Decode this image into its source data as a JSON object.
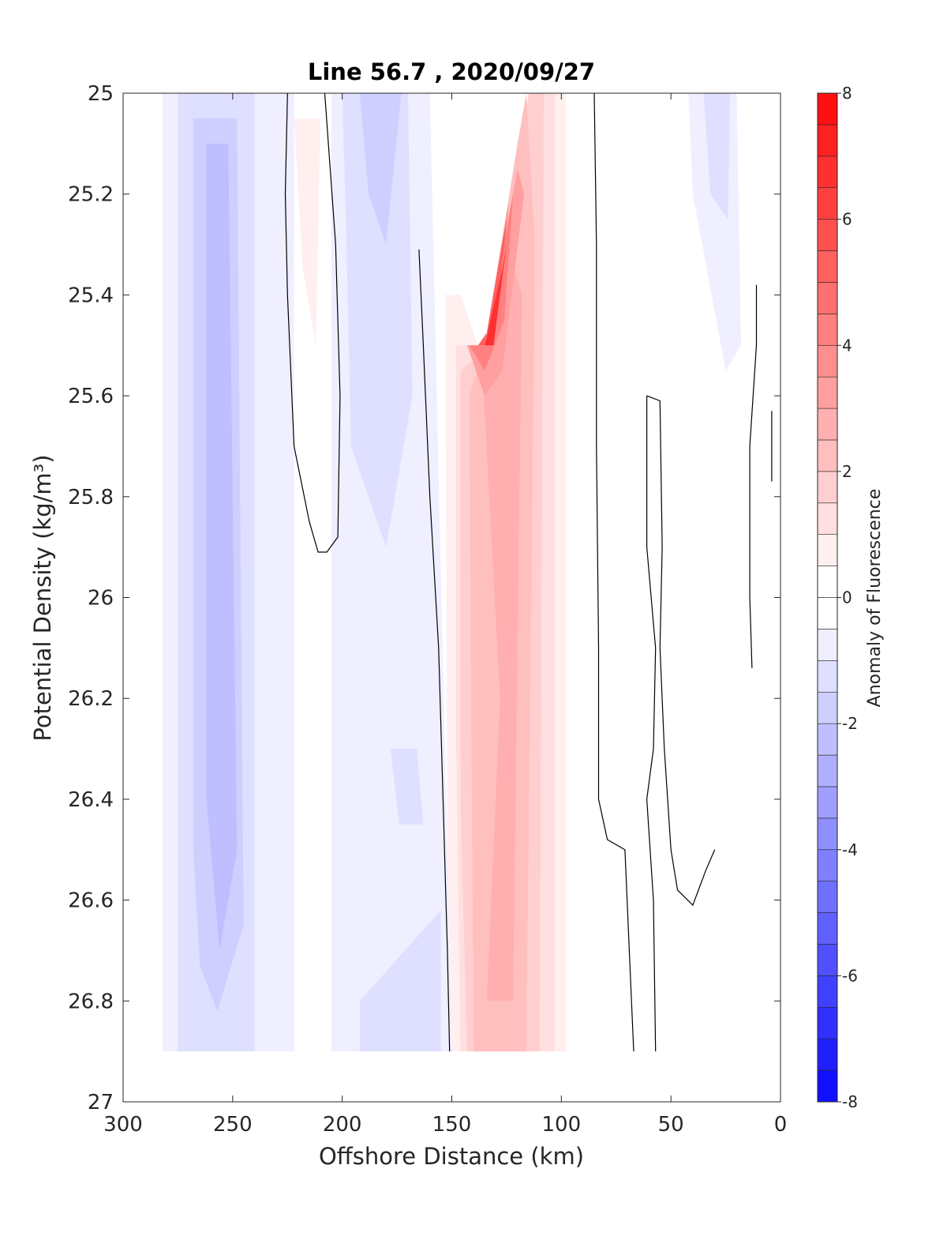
{
  "chart_data": {
    "type": "heatmap",
    "title": "Line 56.7 , 2020/09/27",
    "xlabel": "Offshore Distance (km)",
    "ylabel": "Potential Density (kg/m³)",
    "colorbar_label": "Anomaly of Fluorescence",
    "xlim": [
      300,
      0
    ],
    "ylim": [
      25,
      27
    ],
    "x_reversed": true,
    "y_reversed": true,
    "x_ticks": [
      300,
      250,
      200,
      150,
      100,
      50,
      0
    ],
    "y_ticks": [
      25,
      25.2,
      25.4,
      25.6,
      25.8,
      26,
      26.2,
      26.4,
      26.6,
      26.8,
      27
    ],
    "x_tick_labels": [
      "300",
      "250",
      "200",
      "150",
      "100",
      "50",
      "0"
    ],
    "y_tick_labels": [
      "25",
      "25.2",
      "25.4",
      "25.6",
      "25.8",
      "26",
      "26.2",
      "26.4",
      "26.6",
      "26.8",
      "27"
    ],
    "colorbar": {
      "limits": [
        -8,
        8
      ],
      "step": 0.5,
      "ticks": [
        -8,
        -6,
        -4,
        -2,
        0,
        2,
        4,
        6,
        8
      ],
      "tick_labels": [
        "-8",
        "-6",
        "-4",
        "-2",
        "0",
        "2",
        "4",
        "6",
        "8"
      ],
      "colormap": "blue-white-red",
      "low_color": "#0000ff",
      "mid_color": "#ffffff",
      "high_color": "#ff0000"
    },
    "filled_regions": [
      {
        "level": -0.5,
        "points": [
          [
            282,
            25
          ],
          [
            222,
            25
          ],
          [
            222,
            26.9
          ],
          [
            282,
            26.9
          ]
        ]
      },
      {
        "level": -1.0,
        "points": [
          [
            275,
            25
          ],
          [
            240,
            25
          ],
          [
            240,
            26.9
          ],
          [
            275,
            26.9
          ]
        ]
      },
      {
        "level": -1.5,
        "points": [
          [
            268,
            25.05
          ],
          [
            248,
            25.05
          ],
          [
            245,
            26.65
          ],
          [
            257,
            26.82
          ],
          [
            265,
            26.73
          ],
          [
            268,
            26.5
          ]
        ]
      },
      {
        "level": -2.0,
        "points": [
          [
            262,
            25.1
          ],
          [
            252,
            25.1
          ],
          [
            248,
            26.5
          ],
          [
            256,
            26.7
          ],
          [
            262,
            26.4
          ]
        ]
      },
      {
        "level": -0.5,
        "points": [
          [
            205,
            25
          ],
          [
            160,
            25
          ],
          [
            150,
            26.9
          ],
          [
            205,
            26.9
          ]
        ]
      },
      {
        "level": -1.0,
        "points": [
          [
            200,
            25
          ],
          [
            170,
            25
          ],
          [
            168,
            25.6
          ],
          [
            180,
            25.9
          ],
          [
            196,
            25.7
          ],
          [
            198,
            25.3
          ]
        ]
      },
      {
        "level": -1.5,
        "points": [
          [
            192,
            25
          ],
          [
            173,
            25
          ],
          [
            180,
            25.3
          ],
          [
            188,
            25.2
          ]
        ]
      },
      {
        "level": -1.0,
        "points": [
          [
            178,
            26.3
          ],
          [
            166,
            26.3
          ],
          [
            163,
            26.45
          ],
          [
            174,
            26.45
          ]
        ]
      },
      {
        "level": -1.0,
        "points": [
          [
            192,
            26.8
          ],
          [
            155,
            26.62
          ],
          [
            155,
            26.9
          ],
          [
            192,
            26.9
          ]
        ]
      },
      {
        "level": -0.5,
        "points": [
          [
            42,
            25
          ],
          [
            20,
            25
          ],
          [
            18,
            25.5
          ],
          [
            25,
            25.55
          ],
          [
            40,
            25.2
          ]
        ]
      },
      {
        "level": -1.0,
        "points": [
          [
            35,
            25
          ],
          [
            23,
            25
          ],
          [
            24,
            25.25
          ],
          [
            32,
            25.2
          ]
        ]
      },
      {
        "level": 0.5,
        "points": [
          [
            222,
            25.05
          ],
          [
            210,
            25.05
          ],
          [
            212,
            25.5
          ],
          [
            218,
            25.35
          ]
        ]
      },
      {
        "level": 0.5,
        "points": [
          [
            153,
            25.4
          ],
          [
            146,
            25.4
          ],
          [
            138,
            25.5
          ],
          [
            132,
            25.5
          ],
          [
            118,
            25.1
          ],
          [
            114,
            25
          ],
          [
            98,
            25
          ],
          [
            98,
            26.9
          ],
          [
            150,
            26.9
          ],
          [
            152,
            26.5
          ]
        ]
      },
      {
        "level": 1.0,
        "points": [
          [
            148,
            25.5
          ],
          [
            132,
            25.5
          ],
          [
            118,
            25.1
          ],
          [
            114,
            25
          ],
          [
            103,
            25
          ],
          [
            103,
            26.9
          ],
          [
            146,
            26.9
          ],
          [
            148,
            26.3
          ]
        ]
      },
      {
        "level": 1.5,
        "points": [
          [
            146,
            25.55
          ],
          [
            132,
            25.5
          ],
          [
            118,
            25.1
          ],
          [
            115,
            25
          ],
          [
            108,
            25
          ],
          [
            110,
            26.9
          ],
          [
            143,
            26.9
          ],
          [
            146,
            26.4
          ]
        ]
      },
      {
        "level": 2.0,
        "points": [
          [
            142,
            25.6
          ],
          [
            135,
            25.5
          ],
          [
            120,
            25.1
          ],
          [
            116,
            25
          ],
          [
            112,
            25.3
          ],
          [
            116,
            26.9
          ],
          [
            140,
            26.9
          ],
          [
            141,
            26.3
          ]
        ]
      },
      {
        "level": 2.5,
        "points": [
          [
            136,
            25.55
          ],
          [
            125,
            25.3
          ],
          [
            118,
            25.4
          ],
          [
            122,
            26.8
          ],
          [
            134,
            26.8
          ],
          [
            128,
            26.2
          ]
        ]
      },
      {
        "level": 3.0,
        "points": [
          [
            143,
            25.5
          ],
          [
            135,
            25.5
          ],
          [
            120,
            25.15
          ],
          [
            117,
            25.2
          ],
          [
            127,
            25.55
          ],
          [
            135,
            25.6
          ]
        ]
      },
      {
        "level": 4.0,
        "points": [
          [
            142,
            25.5
          ],
          [
            135,
            25.5
          ],
          [
            122,
            25.2
          ],
          [
            126,
            25.45
          ],
          [
            135,
            25.55
          ]
        ]
      },
      {
        "level": 5.0,
        "points": [
          [
            138,
            25.5
          ],
          [
            135,
            25.5
          ],
          [
            124,
            25.22
          ],
          [
            130,
            25.45
          ]
        ]
      },
      {
        "level": 6.5,
        "points": [
          [
            135,
            25.5
          ],
          [
            131,
            25.5
          ],
          [
            125,
            25.3
          ],
          [
            127,
            25.35
          ]
        ]
      }
    ],
    "contour_lines": [
      [
        [
          225,
          25
        ],
        [
          226,
          25.2
        ],
        [
          225,
          25.4
        ],
        [
          222,
          25.7
        ],
        [
          215,
          25.85
        ],
        [
          211,
          25.91
        ],
        [
          207,
          25.91
        ],
        [
          202,
          25.88
        ],
        [
          201,
          25.6
        ],
        [
          203,
          25.3
        ],
        [
          208,
          25
        ]
      ],
      [
        [
          165,
          25.31
        ],
        [
          163,
          25.5
        ],
        [
          160,
          25.8
        ],
        [
          156,
          26.1
        ],
        [
          154,
          26.4
        ],
        [
          152,
          26.7
        ],
        [
          151,
          26.9
        ]
      ],
      [
        [
          85,
          25
        ],
        [
          84,
          25.3
        ],
        [
          84,
          25.7
        ],
        [
          83,
          26.1
        ],
        [
          83,
          26.4
        ],
        [
          79,
          26.48
        ],
        [
          71,
          26.5
        ],
        [
          69,
          26.7
        ],
        [
          67,
          26.9
        ]
      ],
      [
        [
          61,
          25.6
        ],
        [
          55,
          25.61
        ],
        [
          54,
          25.9
        ],
        [
          55,
          26.1
        ],
        [
          53,
          26.3
        ],
        [
          50,
          26.5
        ],
        [
          47,
          26.58
        ],
        [
          40,
          26.61
        ],
        [
          34,
          26.54
        ],
        [
          30,
          26.5
        ]
      ],
      [
        [
          61,
          25.6
        ],
        [
          61,
          25.9
        ],
        [
          57,
          26.1
        ],
        [
          58,
          26.3
        ],
        [
          61,
          26.4
        ],
        [
          58,
          26.6
        ],
        [
          57,
          26.9
        ]
      ],
      [
        [
          11,
          25.38
        ],
        [
          11,
          25.5
        ],
        [
          14,
          25.7
        ],
        [
          14,
          26
        ],
        [
          13,
          26.14
        ]
      ],
      [
        [
          4,
          25.63
        ],
        [
          4,
          25.77
        ]
      ]
    ]
  }
}
